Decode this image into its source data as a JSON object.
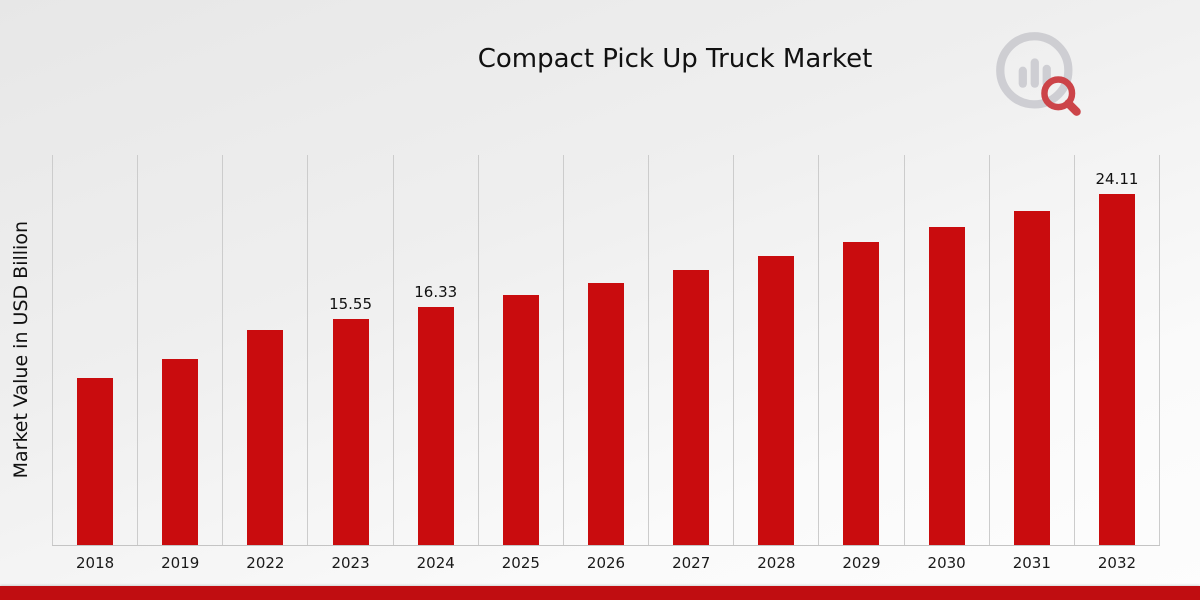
{
  "page": {
    "title": "Compact Pick Up Truck Market",
    "ylabel": "Market Value in USD Billion",
    "bar_color": "#c90c0e",
    "footer_color": "#c00d11",
    "logo_gray": "#c9c9ce",
    "logo_red": "#c6272c"
  },
  "chart_data": {
    "type": "bar",
    "title": "Compact Pick Up Truck Market",
    "xlabel": "",
    "ylabel": "Market Value in USD Billion",
    "categories": [
      "2018",
      "2019",
      "2022",
      "2023",
      "2024",
      "2025",
      "2026",
      "2027",
      "2028",
      "2029",
      "2030",
      "2031",
      "2032"
    ],
    "values": [
      11.5,
      12.8,
      14.8,
      15.55,
      16.33,
      17.15,
      18.0,
      18.9,
      19.84,
      20.83,
      21.87,
      22.96,
      24.11
    ],
    "labeled_points": {
      "2023": "15.55",
      "2024": "16.33",
      "2032": "24.11"
    },
    "ylim": [
      0,
      26.8
    ],
    "grid": "vertical",
    "legend": "none",
    "bar_color": "#c90c0e"
  }
}
